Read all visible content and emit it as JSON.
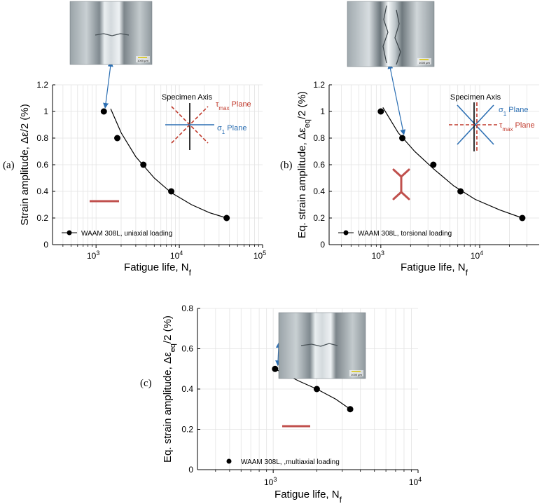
{
  "chart_data": [
    {
      "panel_label": "(a)",
      "type": "scatter",
      "x_scale": "log",
      "xlim": [
        300,
        100000
      ],
      "ylim": [
        0,
        1.2
      ],
      "xticks": [
        1000,
        10000,
        100000
      ],
      "xtick_labels": [
        {
          "base": "10",
          "exp": "3"
        },
        {
          "base": "10",
          "exp": "4"
        },
        {
          "base": "10",
          "exp": "5"
        }
      ],
      "yticks": [
        0,
        0.2,
        0.4,
        0.6,
        0.8,
        1,
        1.2
      ],
      "ytick_labels": [
        "0",
        "0.2",
        "0.4",
        "0.6",
        "0.8",
        "1",
        "1.2"
      ],
      "xlabel": {
        "text": "Fatigue life, N",
        "sub": "f"
      },
      "ylabel": {
        "text": "Strain amplitude, Δε/2 (%)"
      },
      "series": [
        {
          "name": "WAAM 308L, uniaxial loading",
          "points": [
            [
              1240,
              1.0
            ],
            [
              1800,
              0.8
            ],
            [
              3700,
              0.6
            ],
            [
              8000,
              0.4
            ],
            [
              37000,
              0.2
            ]
          ]
        }
      ],
      "fit_curve": [
        [
          1500,
          1.02
        ],
        [
          2000,
          0.84
        ],
        [
          3000,
          0.66
        ],
        [
          5000,
          0.5
        ],
        [
          8000,
          0.39
        ],
        [
          14000,
          0.3
        ],
        [
          23000,
          0.24
        ],
        [
          37000,
          0.2
        ]
      ],
      "inset": {
        "title": "Specimen Axis",
        "tau_label": {
          "base": "τ",
          "sub": "max",
          "rest": " Plane"
        },
        "sigma_label": {
          "base": "σ",
          "sub": "1",
          "rest": " Plane"
        }
      },
      "colors": {
        "tau": "#c0392b",
        "sigma": "#2c6fb3",
        "arrow": "#2c6fb3",
        "crack_mark": "#c0504d"
      }
    },
    {
      "panel_label": "(b)",
      "type": "scatter",
      "x_scale": "log",
      "xlim": [
        300,
        40000
      ],
      "ylim": [
        0,
        1.2
      ],
      "xticks": [
        1000,
        10000
      ],
      "xtick_labels": [
        {
          "base": "10",
          "exp": "3"
        },
        {
          "base": "10",
          "exp": "4"
        }
      ],
      "yticks": [
        0,
        0.2,
        0.4,
        0.6,
        0.8,
        1,
        1.2
      ],
      "ytick_labels": [
        "0",
        "0.2",
        "0.4",
        "0.6",
        "0.8",
        "1",
        "1.2"
      ],
      "xlabel": {
        "text": "Fatigue life, N",
        "sub": "f"
      },
      "ylabel": {
        "text": "Eq. strain amplitude, Δε",
        "sub": "eq",
        "rest": "/2 (%)"
      },
      "series": [
        {
          "name": "WAAM 308L, torsional loading",
          "points": [
            [
              1000,
              1.0
            ],
            [
              1650,
              0.8
            ],
            [
              3400,
              0.6
            ],
            [
              6400,
              0.4
            ],
            [
              27000,
              0.2
            ]
          ]
        }
      ],
      "fit_curve": [
        [
          1050,
          1.03
        ],
        [
          1500,
          0.84
        ],
        [
          2200,
          0.7
        ],
        [
          3400,
          0.57
        ],
        [
          5500,
          0.44
        ],
        [
          9000,
          0.34
        ],
        [
          16000,
          0.26
        ],
        [
          27000,
          0.2
        ]
      ],
      "inset": {
        "title": "Specimen Axis",
        "sigma_label": {
          "base": "σ",
          "sub": "1",
          "rest": " Plane"
        },
        "tau_label": {
          "base": "τ",
          "sub": "max",
          "rest": " Plane"
        }
      },
      "colors": {
        "tau": "#c0392b",
        "sigma": "#2c6fb3",
        "arrow": "#2c6fb3",
        "crack_mark": "#c0504d"
      }
    },
    {
      "panel_label": "(c)",
      "type": "scatter",
      "x_scale": "log",
      "xlim": [
        300,
        10000
      ],
      "ylim": [
        0,
        0.8
      ],
      "xticks": [
        1000,
        10000
      ],
      "xtick_labels": [
        {
          "base": "10",
          "exp": "3"
        },
        {
          "base": "10",
          "exp": "4"
        }
      ],
      "yticks": [
        0,
        0.2,
        0.4,
        0.6,
        0.8
      ],
      "ytick_labels": [
        "0",
        "0.2",
        "0.4",
        "0.6",
        "0.8"
      ],
      "xlabel": {
        "text": "Fatigue life, N",
        "sub": "f"
      },
      "ylabel": {
        "text": "Eq. strain amplitude, Δε",
        "sub": "eq",
        "rest": "/2 (%)"
      },
      "series": [
        {
          "name": "WAAM 308L, ,multiaxial loading",
          "points": [
            [
              1030,
              0.5
            ],
            [
              2000,
              0.4
            ],
            [
              3400,
              0.3
            ]
          ]
        }
      ],
      "fit_curve": [
        [
          1030,
          0.5
        ],
        [
          1500,
          0.44
        ],
        [
          2000,
          0.4
        ],
        [
          2700,
          0.35
        ],
        [
          3400,
          0.3
        ]
      ],
      "colors": {
        "arrow": "#2c6fb3",
        "crack_mark": "#c0504d"
      }
    }
  ],
  "micrograph_scalebar": "1000 μm"
}
